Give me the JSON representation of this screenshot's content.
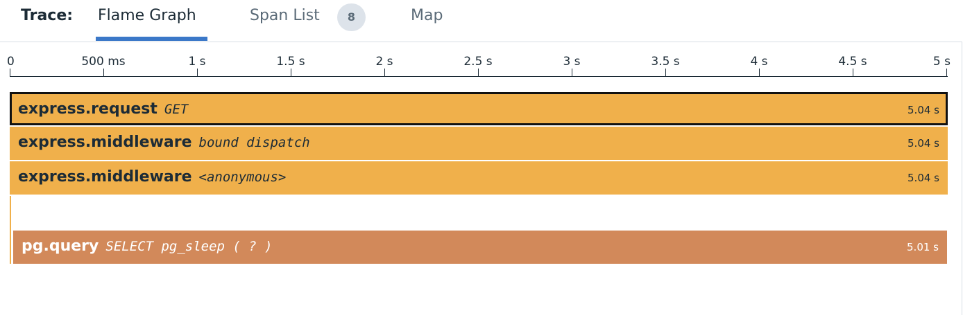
{
  "header": {
    "trace_label": "Trace:",
    "tabs": [
      {
        "label": "Flame Graph",
        "active": true
      },
      {
        "label": "Span List",
        "badge": "8"
      },
      {
        "label": "Map"
      }
    ]
  },
  "timeline": {
    "ticks": [
      "0",
      "500 ms",
      "1 s",
      "1.5 s",
      "2 s",
      "2.5 s",
      "3 s",
      "3.5 s",
      "4 s",
      "4.5 s",
      "5 s"
    ]
  },
  "spans": [
    {
      "name": "express.request",
      "resource": "GET",
      "duration": "5.04 s",
      "selected": true
    },
    {
      "name": "express.middleware",
      "resource": "bound dispatch",
      "duration": "5.04 s"
    },
    {
      "name": "express.middleware",
      "resource": "<anonymous>",
      "duration": "5.04 s"
    },
    {
      "name": "pg.query",
      "resource": "SELECT pg_sleep ( ? )",
      "duration": "5.01 s"
    }
  ],
  "colors": {
    "web_span": "#f0b04b",
    "db_span": "#d2895a",
    "tab_accent": "#3b78c8"
  }
}
